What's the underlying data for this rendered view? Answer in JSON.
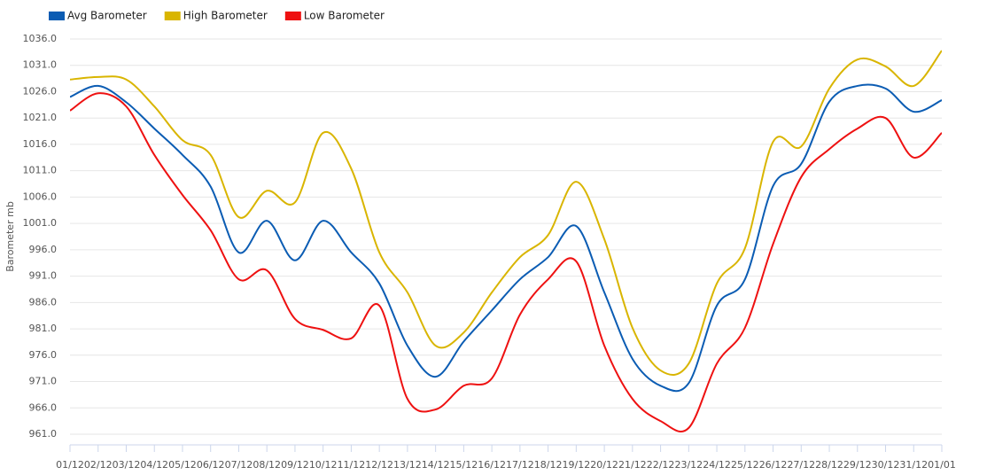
{
  "chart_data": {
    "type": "line",
    "y_label": "Barometer mb",
    "categories": [
      "01/12",
      "02/12",
      "03/12",
      "04/12",
      "05/12",
      "06/12",
      "07/12",
      "08/12",
      "09/12",
      "10/12",
      "11/12",
      "12/12",
      "13/12",
      "14/12",
      "15/12",
      "16/12",
      "17/12",
      "18/12",
      "19/12",
      "20/12",
      "21/12",
      "22/12",
      "23/12",
      "24/12",
      "25/12",
      "26/12",
      "27/12",
      "28/12",
      "29/12",
      "30/12",
      "31/12",
      "01/01"
    ],
    "series": [
      {
        "name": "Avg Barometer",
        "color": "#0b5cb3",
        "values": [
          1025,
          1027.1,
          1024,
          1019,
          1014,
          1008,
          995.5,
          1001.5,
          994,
          1001.5,
          995.5,
          989.6,
          977.8,
          971.9,
          978.6,
          984.5,
          990.4,
          994.6,
          1000.5,
          987.9,
          975.3,
          970.2,
          970.7,
          985.4,
          990.4,
          1008.1,
          1012.3,
          1024.1,
          1027.1,
          1026.6,
          1022.2,
          1024.4
        ]
      },
      {
        "name": "High Barometer",
        "color": "#d9b500",
        "values": [
          1028.3,
          1028.8,
          1028.3,
          1023.2,
          1016.8,
          1014,
          1002.2,
          1007.2,
          1005,
          1018.2,
          1011.4,
          995.5,
          987.9,
          977.8,
          980.3,
          987.9,
          994.6,
          998.8,
          1008.9,
          998,
          981.2,
          973.1,
          974.4,
          989.6,
          996.3,
          1016.5,
          1015.6,
          1026.6,
          1032.1,
          1030.8,
          1027.1,
          1033.8
        ]
      },
      {
        "name": "Low Barometer",
        "color": "#ee1111",
        "values": [
          1022.4,
          1025.7,
          1023.2,
          1014,
          1006.4,
          999.7,
          990.4,
          992.1,
          982.9,
          980.8,
          979.2,
          985.4,
          967.7,
          965.7,
          970.2,
          971.6,
          983.7,
          990.4,
          993.8,
          977.8,
          967.7,
          963.5,
          962.2,
          974.4,
          981.2,
          997.1,
          1009.8,
          1015.1,
          1019,
          1021,
          1013.5,
          1018.2
        ]
      }
    ],
    "ylim": [
      961,
      1036
    ],
    "yticks": [
      {
        "value": 961,
        "label": "961.0"
      },
      {
        "value": 966,
        "label": "966.0"
      },
      {
        "value": 971,
        "label": "971.0"
      },
      {
        "value": 976,
        "label": "976.0"
      },
      {
        "value": 981,
        "label": "981.0"
      },
      {
        "value": 986,
        "label": "986.0"
      },
      {
        "value": 991,
        "label": "991.0"
      },
      {
        "value": 996,
        "label": "996.0"
      },
      {
        "value": 1001,
        "label": "1001.0"
      },
      {
        "value": 1006,
        "label": "1006.0"
      },
      {
        "value": 1011,
        "label": "1011.0"
      },
      {
        "value": 1016,
        "label": "1016.0"
      },
      {
        "value": 1021,
        "label": "1021.0"
      },
      {
        "value": 1026,
        "label": "1026.0"
      },
      {
        "value": 1031,
        "label": "1031.0"
      },
      {
        "value": 1036,
        "label": "1036.0"
      }
    ],
    "grid": true,
    "legend": "top-left"
  }
}
